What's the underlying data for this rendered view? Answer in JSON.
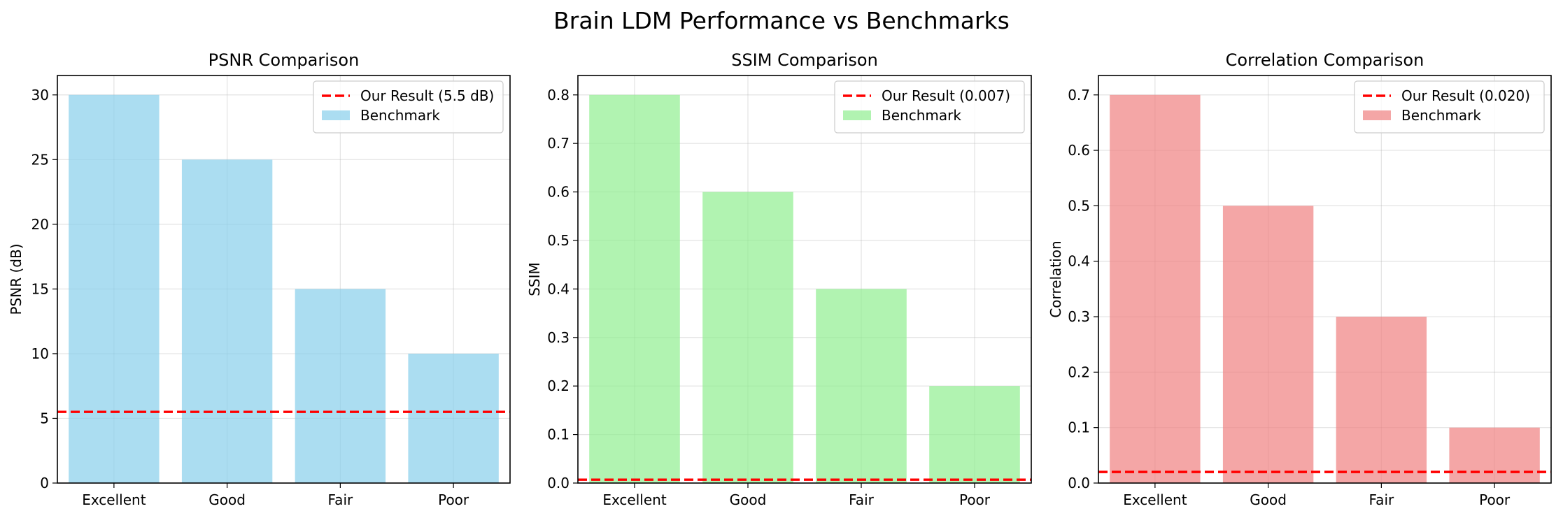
{
  "figure": {
    "title": "Brain LDM Performance vs Benchmarks"
  },
  "chart_data": [
    {
      "type": "bar",
      "title": "PSNR Comparison",
      "xlabel": "",
      "ylabel": "PSNR (dB)",
      "categories": [
        "Excellent",
        "Good",
        "Fair",
        "Poor"
      ],
      "series": [
        {
          "name": "Benchmark",
          "values": [
            30,
            25,
            15,
            10
          ]
        }
      ],
      "reference_line": {
        "name": "Our Result (5.5 dB)",
        "value": 5.5,
        "style": "dashed"
      },
      "ylim": [
        0,
        31.5
      ],
      "yticks": [
        0,
        5,
        10,
        15,
        20,
        25,
        30
      ],
      "grid": true,
      "legend": "top-right",
      "colors": {
        "bar": "#87ceeb",
        "line": "#ff0000"
      }
    },
    {
      "type": "bar",
      "title": "SSIM Comparison",
      "xlabel": "",
      "ylabel": "SSIM",
      "categories": [
        "Excellent",
        "Good",
        "Fair",
        "Poor"
      ],
      "series": [
        {
          "name": "Benchmark",
          "values": [
            0.8,
            0.6,
            0.4,
            0.2
          ]
        }
      ],
      "reference_line": {
        "name": "Our Result (0.007)",
        "value": 0.007,
        "style": "dashed"
      },
      "ylim": [
        0,
        0.84
      ],
      "yticks": [
        0,
        0.1,
        0.2,
        0.3,
        0.4,
        0.5,
        0.6,
        0.7,
        0.8
      ],
      "ytick_labels": [
        "0.0",
        "0.1",
        "0.2",
        "0.3",
        "0.4",
        "0.5",
        "0.6",
        "0.7",
        "0.8"
      ],
      "grid": true,
      "legend": "top-right",
      "colors": {
        "bar": "#90ee90",
        "line": "#ff0000"
      }
    },
    {
      "type": "bar",
      "title": "Correlation Comparison",
      "xlabel": "",
      "ylabel": "Correlation",
      "categories": [
        "Excellent",
        "Good",
        "Fair",
        "Poor"
      ],
      "series": [
        {
          "name": "Benchmark",
          "values": [
            0.7,
            0.5,
            0.3,
            0.1
          ]
        }
      ],
      "reference_line": {
        "name": "Our Result (0.020)",
        "value": 0.02,
        "style": "dashed"
      },
      "ylim": [
        0,
        0.735
      ],
      "yticks": [
        0,
        0.1,
        0.2,
        0.3,
        0.4,
        0.5,
        0.6,
        0.7
      ],
      "ytick_labels": [
        "0.0",
        "0.1",
        "0.2",
        "0.3",
        "0.4",
        "0.5",
        "0.6",
        "0.7"
      ],
      "grid": true,
      "legend": "top-right",
      "colors": {
        "bar": "#f08080",
        "line": "#ff0000"
      }
    }
  ]
}
